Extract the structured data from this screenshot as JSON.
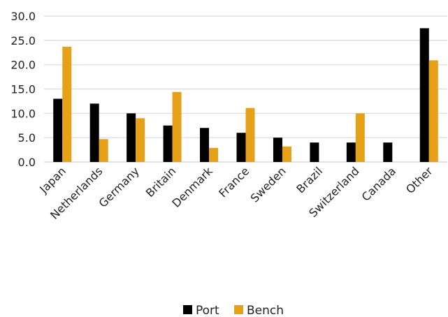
{
  "chart_data": {
    "type": "bar",
    "categories": [
      "Japan",
      "Netherlands",
      "Germany",
      "Britain",
      "Denmark",
      "France",
      "Sweden",
      "Brazil",
      "Switzerland",
      "Canada",
      "Other"
    ],
    "series": [
      {
        "name": "Port",
        "color": "#000000",
        "values": [
          13.0,
          12.0,
          10.0,
          7.5,
          7.0,
          6.0,
          5.0,
          4.0,
          4.0,
          4.0,
          27.5
        ]
      },
      {
        "name": "Bench",
        "color": "#e6a118",
        "values": [
          23.7,
          4.7,
          9.0,
          14.4,
          2.9,
          11.1,
          3.2,
          0,
          10.0,
          0,
          20.9
        ]
      }
    ],
    "ylim": [
      0,
      30
    ],
    "yticks": [
      "0.0",
      "5.0",
      "10.0",
      "15.0",
      "20.0",
      "25.0",
      "30.0"
    ],
    "ytick_values": [
      0,
      5,
      10,
      15,
      20,
      25,
      30
    ],
    "grid": true,
    "legend_position": "bottom",
    "title": "",
    "xlabel": "",
    "ylabel": ""
  }
}
